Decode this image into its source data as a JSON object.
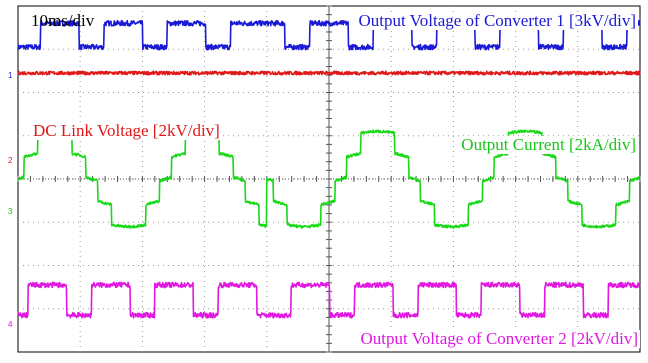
{
  "chart_data": {
    "type": "line",
    "title": "",
    "xlabel": "",
    "ylabel": "",
    "x_scale_label": "10ms/div",
    "x_divisions": 10,
    "y_divisions": 8,
    "x_range_ms": [
      0,
      100
    ],
    "grid": true,
    "grid_style": "dotted",
    "background": "#ffffff",
    "series": [
      {
        "name": "Output Voltage of Converter 1 [3kV/div]",
        "color": "#1a1ad6",
        "channel_marker": "1",
        "volts_per_div_kV": 3,
        "waveform": "square",
        "baseline_div": 3.05,
        "pulse_height_div": 0.55,
        "period_ms": 10.2,
        "pulse_width_ms": 6.2,
        "first_rise_ms": 3.6,
        "phase_step_at_ms": 40,
        "phase_step_ms": 2.5
      },
      {
        "name": "DC Link Voltage [2kV/div]",
        "color": "#e01818",
        "channel_marker": "2",
        "volts_per_div_kV": 2,
        "waveform": "dc",
        "level_div": 2.45
      },
      {
        "name": "Output Current [2kA/div]",
        "color": "#18d818",
        "channel_marker": "3",
        "volts_per_div_kV": 2,
        "waveform": "stepped_sine",
        "offset_div": 0,
        "amplitude_div": 1.1,
        "period_ms": 23.7,
        "steps": 2,
        "phase_step_at_ms": 40,
        "phase_step_ms": 4.5
      },
      {
        "name": "Output Voltage of Converter 2 [2kV/div]",
        "color": "#e018e0",
        "channel_marker": "4",
        "volts_per_div_kV": 2,
        "waveform": "square",
        "baseline_div": -3.15,
        "pulse_height_div": 0.7,
        "period_ms": 10.2,
        "pulse_width_ms": 6.2,
        "first_rise_ms": 1.6,
        "phase_step_at_ms": 40,
        "phase_step_ms": 1.5
      }
    ]
  },
  "labels": {
    "timebase": "10ms/div",
    "ch1": "Output Voltage of Converter 1 [3kV/div]",
    "ch2": "DC Link Voltage [2kV/div]",
    "ch3": "Output Current [2kA/div]",
    "ch4": "Output Voltage of Converter 2 [2kV/div]"
  },
  "markers": {
    "ch1": "1",
    "ch2": "2",
    "ch3": "3",
    "ch4": "4"
  }
}
